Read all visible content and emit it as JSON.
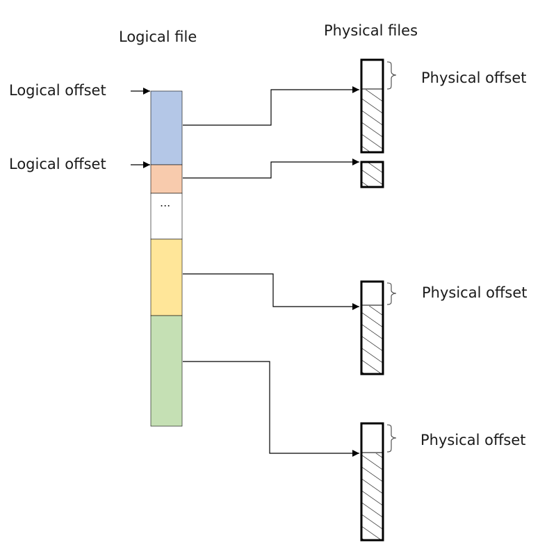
{
  "labels": {
    "logical_file": "Logical file",
    "physical_files": "Physical files",
    "logical_offset": "Logical offset",
    "physical_offset": "Physical offset",
    "ellipsis": "..."
  },
  "colors": {
    "segment_blue": "#b4c7e7",
    "segment_orange": "#f8cbad",
    "segment_white": "#ffffff",
    "segment_yellow": "#ffe699",
    "segment_green": "#c5e0b4",
    "stroke": "#000000"
  },
  "logical_segments": [
    "blue",
    "orange",
    "ellipsis",
    "yellow",
    "green"
  ],
  "physical_files": [
    "physical-file-1",
    "physical-file-2",
    "physical-file-3",
    "physical-file-4"
  ]
}
